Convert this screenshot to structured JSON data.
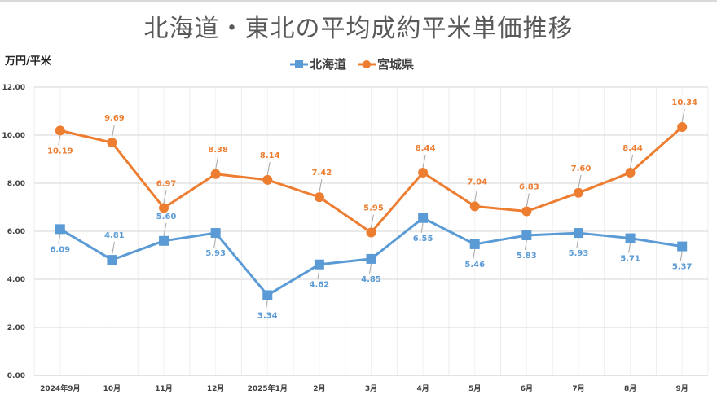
{
  "chart_data": {
    "type": "line",
    "title": "北海道・東北の平均成約平米単価推移",
    "ylabel": "万円/平米",
    "xlabel": "",
    "categories": [
      "2024年9月",
      "10月",
      "11月",
      "12月",
      "2025年1月",
      "2月",
      "3月",
      "4月",
      "5月",
      "6月",
      "7月",
      "8月",
      "9月"
    ],
    "ylim": [
      0,
      12
    ],
    "yticks": [
      "0.00",
      "2.00",
      "4.00",
      "6.00",
      "8.00",
      "10.00",
      "12.00"
    ],
    "grid": true,
    "legend_position": "top-center",
    "series": [
      {
        "name": "北海道",
        "color": "#5b9bd5",
        "marker": "square",
        "values": [
          6.09,
          4.81,
          5.6,
          5.93,
          3.34,
          4.62,
          4.85,
          6.55,
          5.46,
          5.83,
          5.93,
          5.71,
          5.37
        ],
        "labels": [
          "6.09",
          "4.81",
          "5.60",
          "5.93",
          "3.34",
          "4.62",
          "4.85",
          "6.55",
          "5.46",
          "5.83",
          "5.93",
          "5.71",
          "5.37"
        ],
        "label_side": [
          "below",
          "above",
          "above",
          "below",
          "below",
          "below",
          "below",
          "below",
          "below",
          "below",
          "below",
          "below",
          "below"
        ]
      },
      {
        "name": "宮城県",
        "color": "#ed7d31",
        "marker": "circle",
        "values": [
          10.19,
          9.69,
          6.97,
          8.38,
          8.14,
          7.42,
          5.95,
          8.44,
          7.04,
          6.83,
          7.6,
          8.44,
          10.34
        ],
        "labels": [
          "10.19",
          "9.69",
          "6.97",
          "8.38",
          "8.14",
          "7.42",
          "5.95",
          "8.44",
          "7.04",
          "6.83",
          "7.60",
          "8.44",
          "10.34"
        ],
        "label_side": [
          "below",
          "above",
          "above",
          "above",
          "above",
          "above",
          "above",
          "above",
          "above",
          "above",
          "above",
          "above",
          "above"
        ]
      }
    ]
  }
}
